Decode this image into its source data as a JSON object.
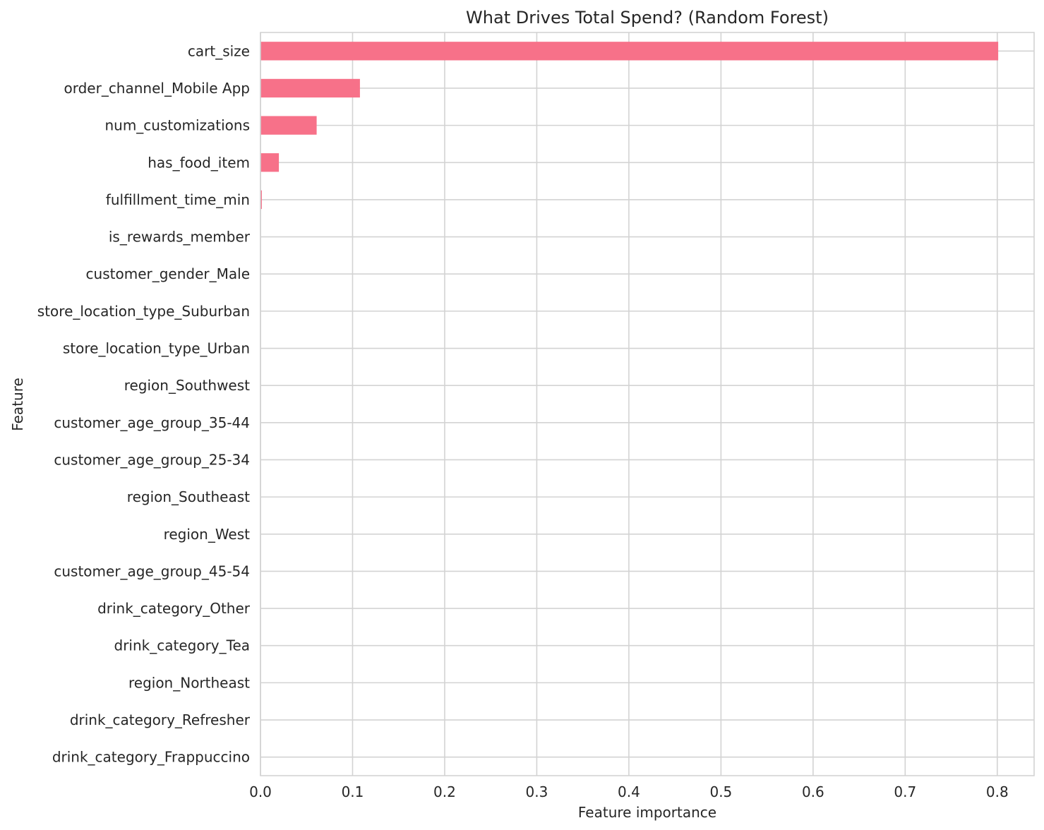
{
  "chart_data": {
    "type": "bar",
    "orientation": "horizontal",
    "title": "What Drives Total Spend? (Random Forest)",
    "xlabel": "Feature importance",
    "ylabel": "Feature",
    "xlim": [
      0,
      0.84
    ],
    "xticks": [
      "0.0",
      "0.1",
      "0.2",
      "0.3",
      "0.4",
      "0.5",
      "0.6",
      "0.7",
      "0.8"
    ],
    "grid": true,
    "bar_color": "#f77189",
    "categories": [
      "cart_size",
      "order_channel_Mobile App",
      "num_customizations",
      "has_food_item",
      "fulfillment_time_min",
      "is_rewards_member",
      "customer_gender_Male",
      "store_location_type_Suburban",
      "store_location_type_Urban",
      "region_Southwest",
      "customer_age_group_35-44",
      "customer_age_group_25-34",
      "region_Southeast",
      "region_West",
      "customer_age_group_45-54",
      "drink_category_Other",
      "drink_category_Tea",
      "region_Northeast",
      "drink_category_Refresher",
      "drink_category_Frappuccino"
    ],
    "values": [
      0.801,
      0.108,
      0.061,
      0.02,
      0.0015,
      0.0002,
      0.0001,
      0.0001,
      0.0001,
      0.0001,
      0.0001,
      0.0001,
      0.0001,
      0.0,
      0.0,
      0.0,
      0.0,
      0.0,
      0.0,
      0.0
    ]
  }
}
